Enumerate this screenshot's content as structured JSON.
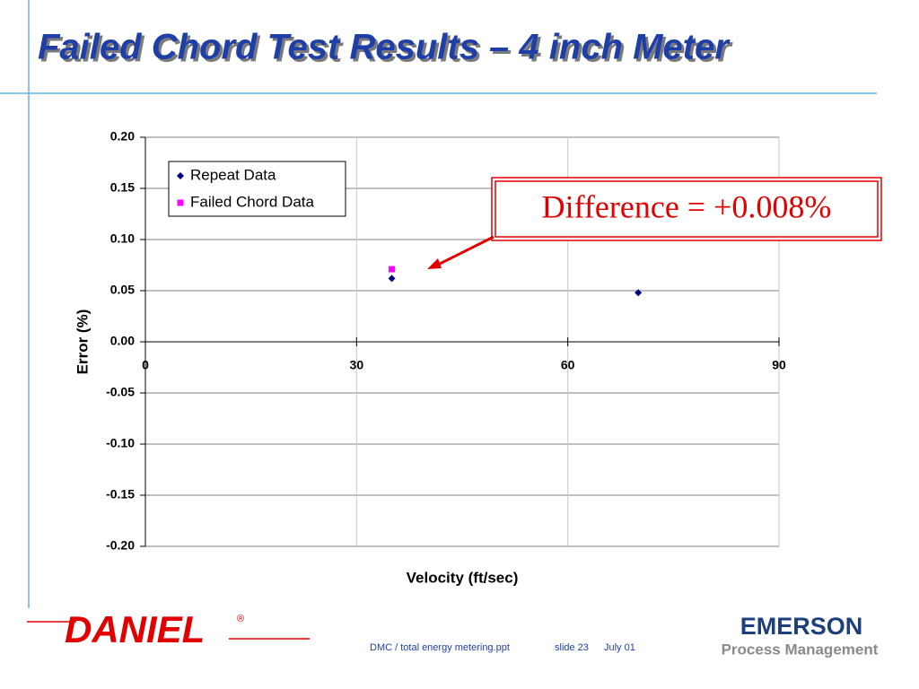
{
  "slide_title": "Failed Chord Test Results – 4 inch Meter",
  "chart_data": {
    "type": "scatter",
    "x_label": "Velocity (ft/sec)",
    "y_label": "Error (%)",
    "series": [
      {
        "name": "Repeat Data",
        "color": "#000080",
        "marker": "diamond",
        "x": [
          35,
          70
        ],
        "values": [
          0.062,
          0.048
        ]
      },
      {
        "name": "Failed Chord Data",
        "color": "#ff00ff",
        "marker": "square",
        "x": [
          35
        ],
        "values": [
          0.071
        ]
      }
    ],
    "xlim": [
      0,
      90
    ],
    "xticks": [
      0,
      30,
      60,
      90
    ],
    "ylim": [
      -0.2,
      0.2
    ],
    "yticks": [
      {
        "value": 0.2,
        "label": "0.20"
      },
      {
        "value": 0.15,
        "label": "0.15"
      },
      {
        "value": 0.1,
        "label": "0.10"
      },
      {
        "value": 0.05,
        "label": "0.05"
      },
      {
        "value": 0,
        "label": "0.00"
      },
      {
        "value": -0.05,
        "label": "-0.05"
      },
      {
        "value": -0.1,
        "label": "-0.10"
      },
      {
        "value": -0.15,
        "label": "-0.15"
      },
      {
        "value": -0.2,
        "label": "-0.20"
      }
    ],
    "grid": true,
    "legend": "upper left",
    "annotation": "Difference = +0.008%"
  },
  "footer": {
    "file": "DMC / total energy metering.ppt",
    "slide": "slide 23",
    "date": "July  01"
  },
  "logos": {
    "left": "DANIEL",
    "left_mark": "®",
    "right": "EMERSON",
    "right_sub": "Process Management"
  }
}
